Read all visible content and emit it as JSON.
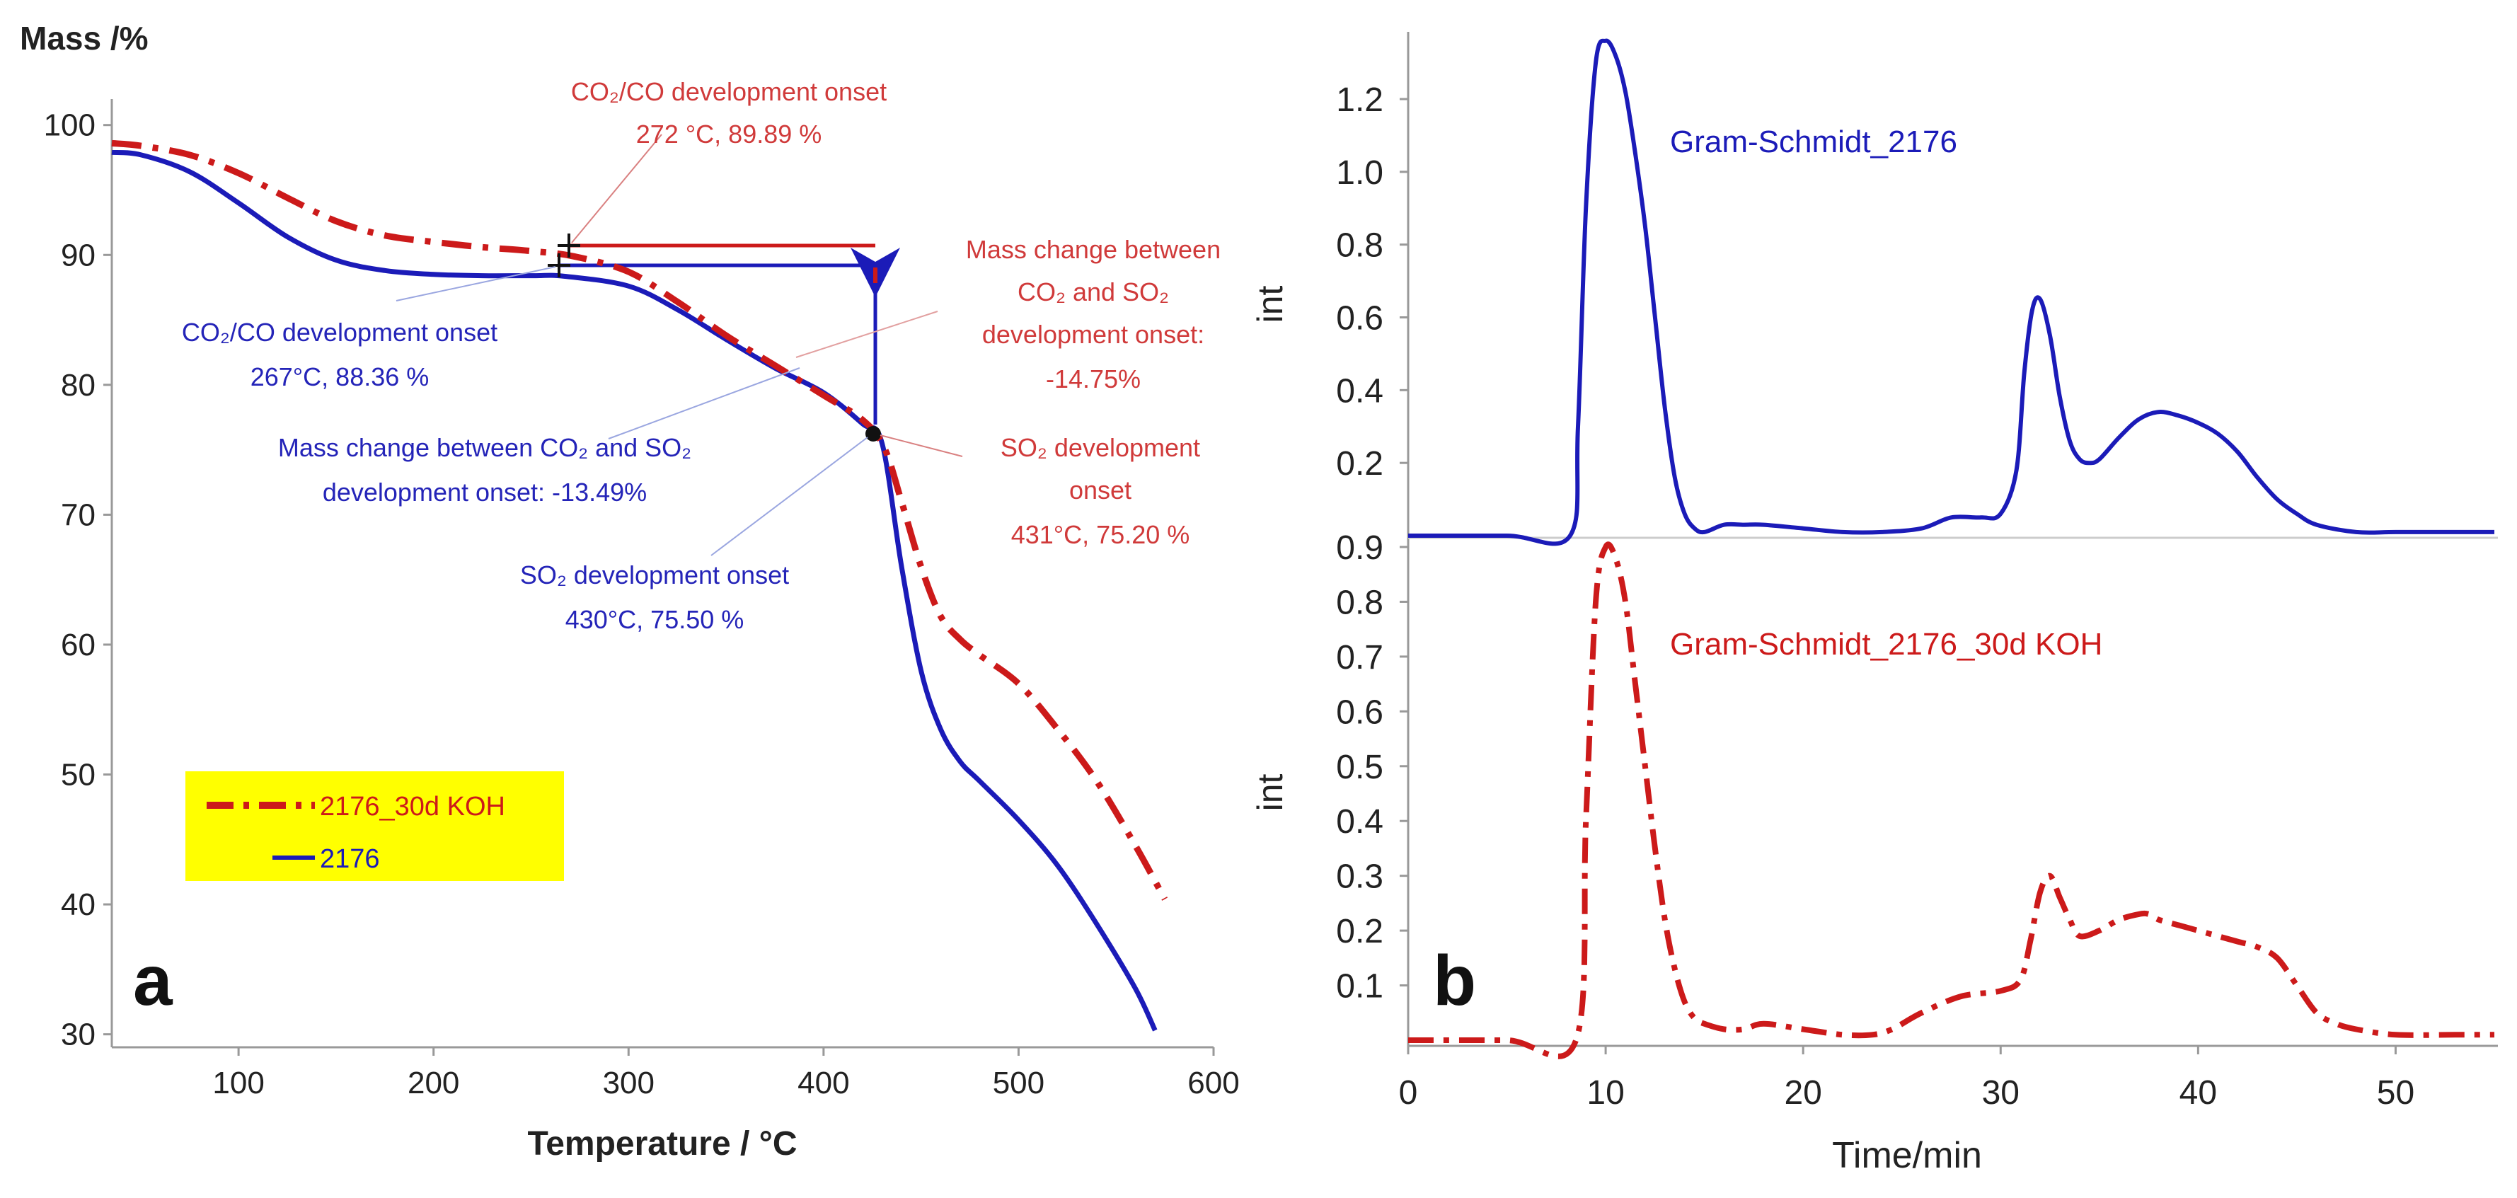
{
  "colors": {
    "red": "#cc1a1a",
    "blue": "#1b1bb8",
    "ann_red": "#d03a3a",
    "ann_blue": "#2424b8",
    "legend_bg": "#ffff00",
    "axis": "#888888",
    "text": "#222222"
  },
  "panel_a": {
    "y_axis_title": "Mass /%",
    "x_axis_title": "Temperature / °C",
    "panel_label": "a",
    "x_ticks": [
      "100",
      "200",
      "300",
      "400",
      "500",
      "600"
    ],
    "y_ticks": [
      "100",
      "90",
      "80",
      "70",
      "60",
      "50",
      "40",
      "30"
    ],
    "legend": [
      {
        "label": "2176_30d KOH",
        "color": "#cc1a1a",
        "style": "dashdot"
      },
      {
        "label": "2176",
        "color": "#1b1bb8",
        "style": "solid"
      }
    ],
    "annotations": {
      "red_co2_title": "CO₂/CO development onset",
      "red_co2_value": "272 °C, 89.89 %",
      "red_mass_1": "Mass change between",
      "red_mass_2": "CO₂ and SO₂",
      "red_mass_3": "development onset:",
      "red_mass_4": "-14.75%",
      "red_so2_1": "SO₂ development",
      "red_so2_2": "onset",
      "red_so2_3": "431°C, 75.20 %",
      "blue_co2_title": "CO₂/CO development onset",
      "blue_co2_value": "267°C, 88.36 %",
      "blue_mass_1": "Mass change between CO₂ and SO₂",
      "blue_mass_2": "development onset: -13.49%",
      "blue_so2_1": "SO₂ development onset",
      "blue_so2_2": "430°C, 75.50 %"
    }
  },
  "panel_b": {
    "x_axis_title": "Time/min",
    "y_axis_title_top": "int",
    "y_axis_title_bottom": "int",
    "panel_label": "b",
    "x_ticks": [
      "0",
      "10",
      "20",
      "30",
      "40",
      "50"
    ],
    "top_y_ticks": [
      "1.2",
      "1.0",
      "0.8",
      "0.6",
      "0.4",
      "0.2"
    ],
    "bottom_y_ticks": [
      "0.9",
      "0.8",
      "0.7",
      "0.6",
      "0.5",
      "0.4",
      "0.3",
      "0.2",
      "0.1"
    ],
    "top_series_label": "Gram-Schmidt_2176",
    "bottom_series_label": "Gram-Schmidt_2176_30d KOH"
  },
  "chart_data": [
    {
      "type": "line",
      "xlabel": "Temperature / °C",
      "ylabel": "Mass /%",
      "xlim": [
        35,
        600
      ],
      "ylim": [
        29,
        102
      ],
      "series": [
        {
          "name": "2176_30d KOH",
          "color": "#cc1a1a",
          "style": "dashdot",
          "x": [
            35,
            50,
            75,
            100,
            125,
            150,
            175,
            200,
            225,
            250,
            272,
            300,
            325,
            350,
            375,
            400,
            420,
            431,
            440,
            450,
            460,
            470,
            480,
            500,
            520,
            540,
            560,
            575
          ],
          "y": [
            98.6,
            98.4,
            97.7,
            96.3,
            94.4,
            92.6,
            91.5,
            91.0,
            90.6,
            90.3,
            89.89,
            88.7,
            86.4,
            83.8,
            81.5,
            79.2,
            77.3,
            75.2,
            71.0,
            66.0,
            62.2,
            60.4,
            59.2,
            57.0,
            53.5,
            49.5,
            44.5,
            40.4
          ]
        },
        {
          "name": "2176",
          "color": "#1b1bb8",
          "style": "solid",
          "x": [
            35,
            50,
            75,
            100,
            125,
            150,
            175,
            200,
            225,
            250,
            267,
            300,
            325,
            350,
            375,
            400,
            420,
            430,
            440,
            450,
            460,
            470,
            480,
            500,
            520,
            540,
            560,
            570
          ],
          "y": [
            97.9,
            97.7,
            96.4,
            94.0,
            91.4,
            89.6,
            88.8,
            88.5,
            88.4,
            88.4,
            88.36,
            87.6,
            85.8,
            83.5,
            81.3,
            79.4,
            77.0,
            75.5,
            66.0,
            58.0,
            53.5,
            51.0,
            49.5,
            46.5,
            43.0,
            38.5,
            33.5,
            30.3
          ]
        }
      ]
    },
    {
      "type": "line",
      "xlabel": "Time/min",
      "ylabel": "int",
      "xlim": [
        0,
        55
      ],
      "ylim": [
        0,
        1.35
      ],
      "series": [
        {
          "name": "Gram-Schmidt_2176",
          "color": "#1b1bb8",
          "style": "solid",
          "x": [
            0,
            5,
            8.2,
            8.6,
            9,
            9.5,
            10,
            10.5,
            11,
            11.5,
            12,
            12.5,
            13,
            13.5,
            14,
            14.5,
            15,
            16,
            17,
            18,
            20,
            22,
            24,
            26,
            27.5,
            29,
            30,
            30.8,
            31.2,
            31.6,
            32,
            32.5,
            33,
            33.5,
            34,
            34.5,
            35,
            36,
            37,
            38,
            39,
            40,
            41,
            42,
            43,
            44,
            45,
            46,
            48,
            50,
            53,
            55
          ],
          "y": [
            0,
            0,
            0,
            0.3,
            0.9,
            1.3,
            1.36,
            1.32,
            1.22,
            1.05,
            0.85,
            0.6,
            0.35,
            0.16,
            0.06,
            0.02,
            0.01,
            0.03,
            0.03,
            0.03,
            0.02,
            0.01,
            0.01,
            0.02,
            0.05,
            0.05,
            0.06,
            0.18,
            0.45,
            0.62,
            0.65,
            0.55,
            0.38,
            0.26,
            0.21,
            0.2,
            0.21,
            0.27,
            0.32,
            0.34,
            0.33,
            0.31,
            0.28,
            0.23,
            0.16,
            0.1,
            0.06,
            0.03,
            0.01,
            0.01,
            0.01,
            0.01
          ]
        },
        {
          "name": "Gram-Schmidt_2176_30d KOH",
          "color": "#cc1a1a",
          "style": "dashdot",
          "x": [
            0,
            5,
            8.5,
            9,
            9.5,
            10,
            10.5,
            11,
            11.5,
            12,
            12.5,
            13,
            13.5,
            14,
            14.5,
            15,
            16,
            17,
            18,
            20,
            22,
            23.5,
            24.5,
            26,
            28,
            30,
            31,
            31.5,
            32,
            32.5,
            33,
            33.5,
            34,
            35,
            36,
            37,
            37.5,
            38,
            39,
            40,
            41,
            42,
            43,
            44,
            45,
            46,
            47,
            48,
            50,
            53,
            55
          ],
          "y": [
            0,
            0,
            0,
            0.4,
            0.8,
            0.9,
            0.88,
            0.8,
            0.65,
            0.5,
            0.35,
            0.22,
            0.13,
            0.07,
            0.04,
            0.03,
            0.02,
            0.02,
            0.03,
            0.02,
            0.01,
            0.01,
            0.02,
            0.05,
            0.08,
            0.09,
            0.11,
            0.18,
            0.27,
            0.3,
            0.26,
            0.22,
            0.19,
            0.2,
            0.22,
            0.23,
            0.23,
            0.22,
            0.21,
            0.2,
            0.19,
            0.18,
            0.17,
            0.15,
            0.1,
            0.05,
            0.03,
            0.02,
            0.01,
            0.01,
            0.01
          ]
        }
      ]
    }
  ]
}
